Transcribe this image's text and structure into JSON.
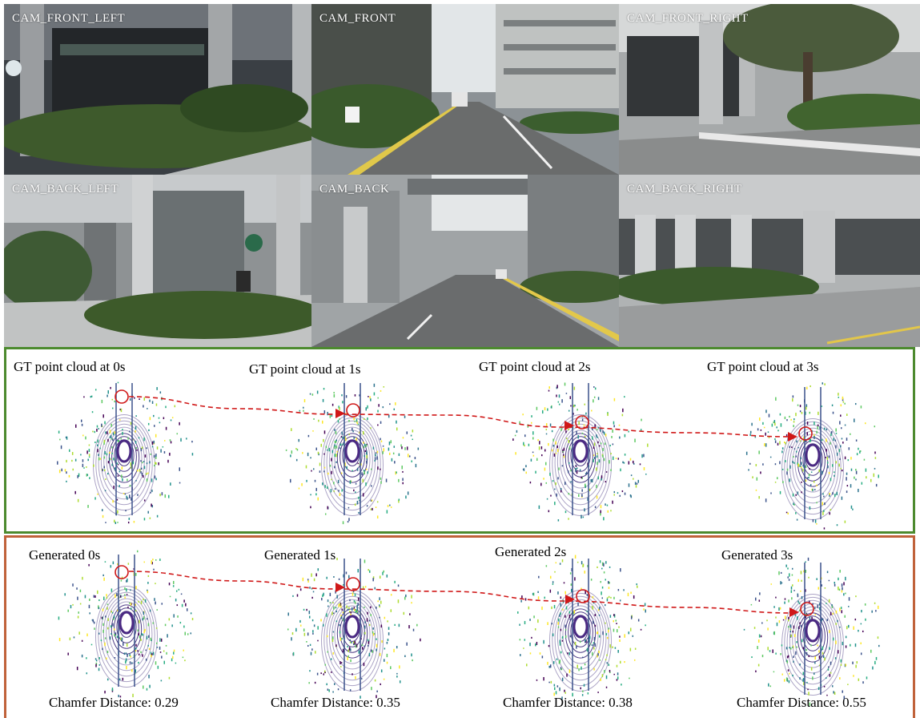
{
  "cameras": [
    {
      "label": "CAM_FRONT_LEFT"
    },
    {
      "label": "CAM_FRONT"
    },
    {
      "label": "CAM_FRONT_RIGHT"
    },
    {
      "label": "CAM_BACK_LEFT"
    },
    {
      "label": "CAM_BACK"
    },
    {
      "label": "CAM_BACK_RIGHT"
    }
  ],
  "gt_titles": [
    "GT point cloud at 0s",
    "GT point cloud at 1s",
    "GT point cloud at 2s",
    "GT point cloud at 3s"
  ],
  "gen_titles": [
    "Generated 0s",
    "Generated 1s",
    "Generated 2s",
    "Generated 3s"
  ],
  "chamfer": [
    "Chamfer Distance: 0.29",
    "Chamfer Distance: 0.35",
    "Chamfer Distance: 0.38",
    "Chamfer Distance: 0.55"
  ],
  "colors": {
    "gt_border": "#4c8a2e",
    "gen_border": "#c0623a",
    "trajectory": "#d01818",
    "lidar_center": "#4b2a83"
  }
}
